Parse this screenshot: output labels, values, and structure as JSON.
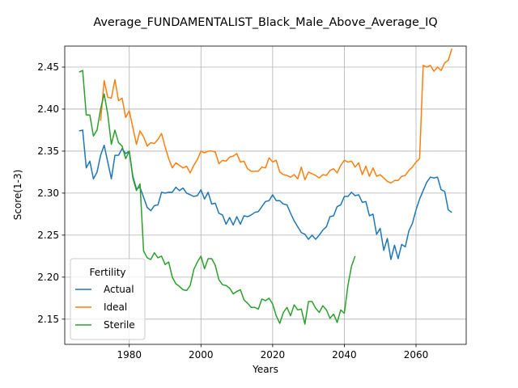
{
  "chart_data": {
    "type": "line",
    "title": "Average_FUNDAMENTALIST_Black_Male_Above_Average_IQ",
    "xlabel": "Years",
    "ylabel": "Score(1-3)",
    "xlim": [
      1962,
      2074
    ],
    "ylim": [
      2.12,
      2.475
    ],
    "xticks": [
      1980,
      2000,
      2020,
      2040,
      2060
    ],
    "yticks": [
      2.15,
      2.2,
      2.25,
      2.3,
      2.35,
      2.4,
      2.45
    ],
    "xtick_labels": [
      "1980",
      "2000",
      "2020",
      "2040",
      "2060"
    ],
    "ytick_labels": [
      "2.15",
      "2.20",
      "2.25",
      "2.30",
      "2.35",
      "2.40",
      "2.45"
    ],
    "grid": true,
    "legend": {
      "title": "Fertility",
      "placement": "lower-left"
    },
    "series": [
      {
        "name": "Actual",
        "color": "#1f77b4",
        "x_start": 1966,
        "values": [
          2.374,
          2.375,
          2.33,
          2.338,
          2.317,
          2.325,
          2.345,
          2.357,
          2.337,
          2.317,
          2.345,
          2.345,
          2.353,
          2.347,
          2.35,
          2.32,
          2.305,
          2.307,
          2.295,
          2.283,
          2.279,
          2.285,
          2.286,
          2.301,
          2.3,
          2.301,
          2.301,
          2.307,
          2.303,
          2.306,
          2.3,
          2.298,
          2.296,
          2.297,
          2.304,
          2.293,
          2.301,
          2.287,
          2.288,
          2.276,
          2.274,
          2.263,
          2.271,
          2.262,
          2.272,
          2.263,
          2.273,
          2.272,
          2.274,
          2.277,
          2.278,
          2.284,
          2.29,
          2.291,
          2.298,
          2.291,
          2.291,
          2.287,
          2.286,
          2.276,
          2.267,
          2.26,
          2.253,
          2.251,
          2.245,
          2.25,
          2.245,
          2.25,
          2.256,
          2.26,
          2.272,
          2.273,
          2.284,
          2.286,
          2.296,
          2.296,
          2.301,
          2.297,
          2.298,
          2.289,
          2.29,
          2.273,
          2.275,
          2.251,
          2.258,
          2.232,
          2.246,
          2.221,
          2.238,
          2.222,
          2.239,
          2.236,
          2.255,
          2.264,
          2.28,
          2.293,
          2.303,
          2.313,
          2.319,
          2.318,
          2.319,
          2.304,
          2.302,
          2.28,
          2.277
        ]
      },
      {
        "name": "Ideal",
        "color": "#ff7f0e",
        "x_start": 1972,
        "values": [
          2.386,
          2.434,
          2.414,
          2.413,
          2.435,
          2.41,
          2.413,
          2.39,
          2.398,
          2.378,
          2.358,
          2.374,
          2.367,
          2.356,
          2.36,
          2.359,
          2.364,
          2.371,
          2.355,
          2.341,
          2.33,
          2.336,
          2.333,
          2.33,
          2.332,
          2.324,
          2.333,
          2.34,
          2.35,
          2.348,
          2.35,
          2.35,
          2.349,
          2.335,
          2.339,
          2.338,
          2.343,
          2.344,
          2.347,
          2.337,
          2.338,
          2.329,
          2.326,
          2.326,
          2.326,
          2.331,
          2.33,
          2.342,
          2.337,
          2.339,
          2.325,
          2.322,
          2.321,
          2.319,
          2.322,
          2.317,
          2.331,
          2.316,
          2.325,
          2.323,
          2.321,
          2.318,
          2.322,
          2.321,
          2.327,
          2.329,
          2.324,
          2.333,
          2.339,
          2.337,
          2.338,
          2.331,
          2.336,
          2.322,
          2.332,
          2.32,
          2.33,
          2.32,
          2.322,
          2.318,
          2.314,
          2.312,
          2.315,
          2.315,
          2.32,
          2.321,
          2.327,
          2.331,
          2.337,
          2.341,
          2.452,
          2.45,
          2.452,
          2.445,
          2.45,
          2.446,
          2.455,
          2.458,
          2.472
        ]
      },
      {
        "name": "Sterile",
        "color": "#2ca02c",
        "x_start": 1966,
        "values": [
          2.444,
          2.446,
          2.393,
          2.393,
          2.368,
          2.375,
          2.4,
          2.418,
          2.394,
          2.358,
          2.375,
          2.36,
          2.356,
          2.341,
          2.35,
          2.318,
          2.303,
          2.311,
          2.231,
          2.223,
          2.221,
          2.229,
          2.223,
          2.225,
          2.215,
          2.218,
          2.2,
          2.192,
          2.189,
          2.185,
          2.184,
          2.19,
          2.209,
          2.218,
          2.225,
          2.21,
          2.222,
          2.222,
          2.214,
          2.197,
          2.191,
          2.19,
          2.187,
          2.18,
          2.183,
          2.185,
          2.173,
          2.169,
          2.164,
          2.164,
          2.162,
          2.174,
          2.172,
          2.175,
          2.168,
          2.154,
          2.145,
          2.158,
          2.164,
          2.154,
          2.167,
          2.161,
          2.162,
          2.144,
          2.171,
          2.171,
          2.163,
          2.158,
          2.166,
          2.161,
          2.151,
          2.156,
          2.146,
          2.161,
          2.157,
          2.19,
          2.213,
          2.225
        ]
      }
    ]
  }
}
